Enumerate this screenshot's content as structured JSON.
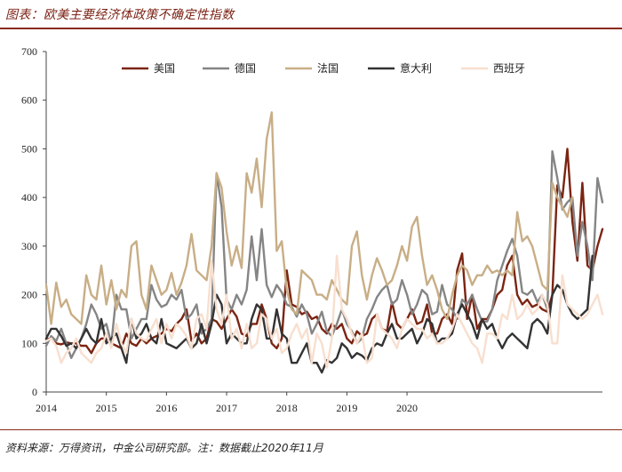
{
  "header": {
    "title": "图表：欧美主要经济体政策不确定性指数"
  },
  "footer": {
    "source": "资料来源：万得资讯，中金公司研究部。注：数据截止2020年11月"
  },
  "colors": {
    "美国": "#7b2412",
    "德国": "#858585",
    "法国": "#c8ae86",
    "意大利": "#333333",
    "西班牙": "#f8dfcf"
  },
  "chart_data": {
    "type": "line",
    "title": "",
    "xlabel": "",
    "ylabel": "",
    "ylim": [
      0,
      700
    ],
    "yticks": [
      0,
      100,
      200,
      300,
      400,
      500,
      600,
      700
    ],
    "xticks": [
      "2014",
      "2015",
      "2016",
      "2017",
      "2018",
      "2019",
      "2020"
    ],
    "x_start": "2014-01",
    "frequency": "monthly",
    "legend": "top",
    "grid": false,
    "series": [
      {
        "name": "美国",
        "values": [
          108,
          110,
          100,
          98,
          102,
          100,
          100,
          95,
          95,
          80,
          100,
          110,
          110,
          100,
          95,
          90,
          120,
          100,
          95,
          110,
          100,
          110,
          115,
          120,
          130,
          125,
          140,
          150,
          170,
          105,
          120,
          100,
          110,
          150,
          145,
          130,
          150,
          170,
          155,
          120,
          115,
          140,
          140,
          180,
          150,
          100,
          90,
          110,
          250,
          180,
          175,
          160,
          165,
          150,
          155,
          130,
          120,
          140,
          130,
          140,
          110,
          100,
          125,
          115,
          120,
          150,
          160,
          130,
          125,
          185,
          140,
          130,
          150,
          170,
          140,
          145,
          180,
          120,
          120,
          150,
          160,
          140,
          250,
          285,
          150,
          200,
          130,
          150,
          150,
          170,
          200,
          210,
          260,
          280,
          200,
          180,
          190,
          175,
          180,
          170,
          165,
          200,
          425,
          400,
          500,
          350,
          270,
          430,
          260,
          250,
          300,
          335
        ]
      },
      {
        "name": "德国",
        "values": [
          95,
          115,
          105,
          130,
          100,
          70,
          90,
          110,
          140,
          180,
          160,
          130,
          140,
          100,
          200,
          170,
          170,
          110,
          130,
          150,
          150,
          220,
          190,
          175,
          180,
          200,
          190,
          210,
          150,
          160,
          180,
          120,
          130,
          150,
          450,
          380,
          190,
          170,
          200,
          180,
          210,
          320,
          230,
          335,
          220,
          195,
          220,
          205,
          180,
          175,
          155,
          180,
          160,
          120,
          140,
          165,
          125,
          115,
          140,
          170,
          140,
          125,
          100,
          110,
          150,
          170,
          195,
          210,
          220,
          180,
          190,
          230,
          200,
          160,
          180,
          210,
          200,
          160,
          165,
          220,
          180,
          170,
          150,
          190,
          180,
          200,
          170,
          145,
          145,
          170,
          230,
          260,
          290,
          315,
          280,
          205,
          200,
          210,
          185,
          200,
          170,
          495,
          440,
          375,
          390,
          400,
          280,
          350,
          300,
          230,
          440,
          390
        ]
      },
      {
        "name": "法国",
        "values": [
          220,
          140,
          225,
          175,
          190,
          160,
          150,
          140,
          240,
          200,
          190,
          260,
          180,
          230,
          170,
          210,
          195,
          300,
          310,
          200,
          170,
          260,
          230,
          200,
          210,
          245,
          200,
          225,
          260,
          325,
          250,
          240,
          230,
          300,
          450,
          420,
          330,
          260,
          300,
          255,
          450,
          410,
          480,
          380,
          520,
          575,
          290,
          310,
          210,
          170,
          160,
          250,
          240,
          230,
          200,
          200,
          190,
          230,
          210,
          190,
          180,
          300,
          330,
          240,
          190,
          240,
          275,
          250,
          220,
          230,
          260,
          300,
          270,
          340,
          360,
          280,
          220,
          240,
          210,
          170,
          150,
          200,
          240,
          260,
          250,
          220,
          240,
          240,
          260,
          245,
          250,
          240,
          250,
          240,
          370,
          310,
          320,
          300,
          260,
          220,
          210,
          430,
          400,
          380,
          360,
          400
        ]
      },
      {
        "name": "意大利",
        "values": [
          110,
          130,
          130,
          115,
          95,
          100,
          90,
          110,
          130,
          110,
          100,
          150,
          100,
          110,
          120,
          90,
          60,
          150,
          110,
          120,
          140,
          110,
          100,
          150,
          100,
          95,
          90,
          100,
          110,
          90,
          100,
          140,
          100,
          140,
          200,
          180,
          100,
          120,
          110,
          100,
          100,
          150,
          180,
          170,
          110,
          110,
          170,
          120,
          110,
          60,
          60,
          80,
          100,
          60,
          60,
          40,
          65,
          60,
          70,
          100,
          90,
          70,
          80,
          75,
          65,
          90,
          100,
          95,
          120,
          140,
          110,
          110,
          120,
          130,
          100,
          120,
          150,
          140,
          100,
          110,
          110,
          120,
          160,
          180,
          160,
          140,
          110,
          150,
          130,
          140,
          110,
          90,
          110,
          120,
          110,
          100,
          90,
          140,
          150,
          140,
          120,
          200,
          220,
          210,
          180,
          160,
          150,
          160,
          170,
          280
        ]
      },
      {
        "name": "西班牙",
        "values": [
          105,
          110,
          95,
          60,
          80,
          90,
          110,
          80,
          70,
          60,
          80,
          90,
          120,
          90,
          140,
          100,
          80,
          150,
          120,
          110,
          105,
          130,
          150,
          100,
          140,
          110,
          140,
          130,
          115,
          90,
          150,
          160,
          130,
          270,
          170,
          140,
          200,
          110,
          130,
          90,
          140,
          90,
          100,
          160,
          150,
          110,
          130,
          80,
          90,
          120,
          140,
          110,
          130,
          60,
          120,
          100,
          50,
          110,
          280,
          170,
          150,
          120,
          100,
          120,
          60,
          70,
          160,
          130,
          120,
          110,
          90,
          130,
          150,
          140,
          130,
          130,
          110,
          120,
          100,
          100,
          110,
          130,
          160,
          140,
          120,
          100,
          90,
          60,
          120,
          120,
          110,
          160,
          150,
          200,
          150,
          160,
          180,
          160,
          170,
          200,
          180,
          100,
          100,
          240,
          180,
          170,
          160,
          150,
          160,
          180,
          200,
          160
        ]
      }
    ]
  }
}
